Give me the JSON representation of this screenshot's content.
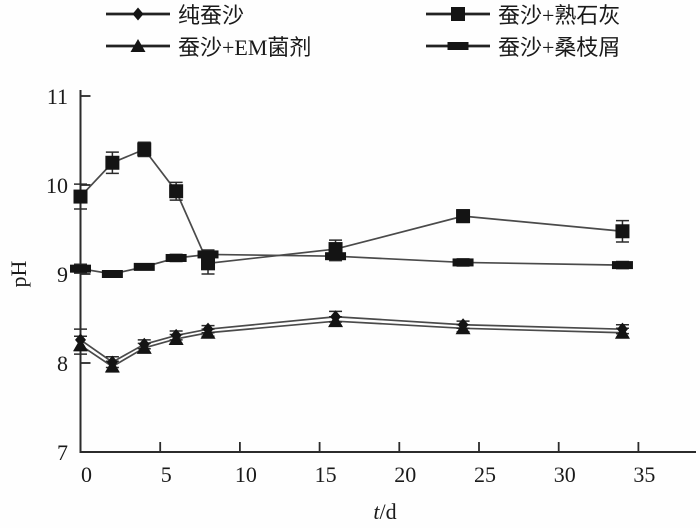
{
  "chart_data": {
    "type": "line",
    "title": "",
    "xlabel_italic": "t",
    "xlabel_rest": "/d",
    "ylabel": "pH",
    "x": [
      0,
      2,
      4,
      6,
      8,
      16,
      24,
      34
    ],
    "xlim": [
      0,
      38.3
    ],
    "ylim": [
      7,
      11
    ],
    "x_ticks": [
      0,
      5,
      10,
      15,
      20,
      25,
      30,
      35
    ],
    "y_ticks": [
      7,
      8,
      9,
      10,
      11
    ],
    "grid": false,
    "legend_position": "top",
    "series": [
      {
        "id": "pure-silkworm-excrement",
        "name": "纯蚕沙",
        "marker": "diamond",
        "values": [
          8.26,
          8.01,
          8.21,
          8.31,
          8.38,
          8.52,
          8.43,
          8.38
        ],
        "errors": [
          0.12,
          0.06,
          0.05,
          0.05,
          0.04,
          0.06,
          0.04,
          0.05
        ]
      },
      {
        "id": "slaked-lime",
        "name": "蚕沙+熟石灰",
        "marker": "square",
        "values": [
          9.87,
          10.25,
          10.4,
          9.93,
          9.12,
          9.28,
          9.65,
          9.48
        ],
        "errors": [
          0.14,
          0.12,
          0.08,
          0.1,
          0.12,
          0.1,
          0.07,
          0.12
        ]
      },
      {
        "id": "em-agent",
        "name": "蚕沙+EM菌剂",
        "marker": "triangle",
        "values": [
          8.2,
          7.96,
          8.17,
          8.27,
          8.34,
          8.47,
          8.39,
          8.34
        ],
        "errors": [
          0.1,
          0.06,
          0.05,
          0.05,
          0.04,
          0.05,
          0.04,
          0.05
        ]
      },
      {
        "id": "mulberry-shavings",
        "name": "蚕沙+桑枝屑",
        "marker": "hbar",
        "values": [
          9.06,
          9.0,
          9.08,
          9.18,
          9.22,
          9.2,
          9.13,
          9.1
        ],
        "errors": [
          0.05,
          0.03,
          0.03,
          0.04,
          0.05,
          0.05,
          0.04,
          0.04
        ]
      }
    ],
    "colors": {
      "line": "#4a4a4a",
      "marker": "#141414",
      "axis": "#2b2b2b",
      "text": "#1a1a1a",
      "background": "#fefefe"
    }
  }
}
